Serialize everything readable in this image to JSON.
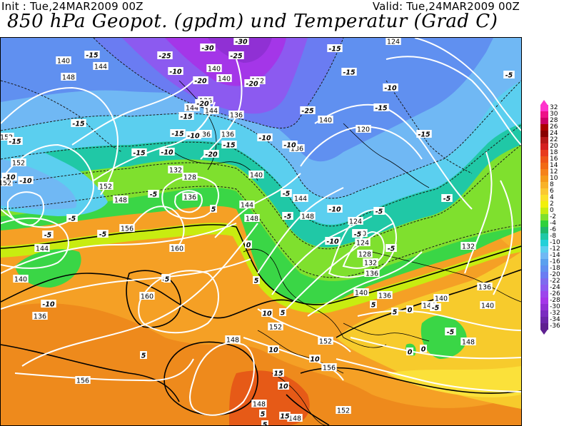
{
  "header": {
    "init": "Init : Tue,24MAR2009 00Z",
    "valid": "Valid: Tue,24MAR2009 00Z",
    "title": "850 hPa Geopot. (gpdm) und Temperatur (Grad C)"
  },
  "legend": {
    "labels": [
      "32",
      "30",
      "28",
      "26",
      "24",
      "22",
      "20",
      "18",
      "16",
      "14",
      "12",
      "10",
      "8",
      "6",
      "4",
      "2",
      "0",
      "-2",
      "-4",
      "-6",
      "-8",
      "-10",
      "-12",
      "-14",
      "-16",
      "-18",
      "-20",
      "-22",
      "-24",
      "-26",
      "-28",
      "-30",
      "-32",
      "-34",
      "-36"
    ],
    "colors": [
      "#ff33cc",
      "#ee1188",
      "#cc0066",
      "#aa0000",
      "#880000",
      "#b51818",
      "#d42020",
      "#e83a1c",
      "#ee5517",
      "#f26a14",
      "#f5821a",
      "#f59a1a",
      "#f8b228",
      "#fac832",
      "#fbe02a",
      "#f2f00a",
      "#c8ec10",
      "#7fe02e",
      "#2fd13c",
      "#1fb86c",
      "#20c8a6",
      "#22d0d8",
      "#5bcfef",
      "#70b8f4",
      "#5aa0ee",
      "#6090f0",
      "#6a7cf2",
      "#7e6aee",
      "#8c5af0",
      "#9c46ec",
      "#a436e8",
      "#9030d4",
      "#7a2cc0",
      "#6a26a8",
      "#5e2090"
    ]
  },
  "map": {
    "geopotential_labels": [
      "140",
      "148",
      "144",
      "152",
      "148",
      "144",
      "140",
      "136",
      "152",
      "152",
      "152",
      "156",
      "160",
      "160",
      "156",
      "148",
      "144",
      "148",
      "140",
      "140",
      "136",
      "132",
      "128",
      "136",
      "136",
      "144",
      "140",
      "136",
      "132",
      "140",
      "136",
      "144",
      "148",
      "152",
      "156",
      "152",
      "148",
      "148",
      "136",
      "144",
      "124",
      "120",
      "120",
      "124",
      "128",
      "132",
      "136",
      "140",
      "136",
      "140",
      "144",
      "148",
      "132",
      "136",
      "140",
      "152",
      "124"
    ],
    "temperature_labels": [
      "-15",
      "-10",
      "-15",
      "-10",
      "-15",
      "-25",
      "-30",
      "-25",
      "-20",
      "-15",
      "-30",
      "-20",
      "-15",
      "-25",
      "-15",
      "-20",
      "-10",
      "-15",
      "-10",
      "-20",
      "-15",
      "-10",
      "-5",
      "-5",
      "-10",
      "-5",
      "-10",
      "-5",
      "-10",
      "-15",
      "-5",
      "-5",
      "0",
      "-5",
      "0",
      "0",
      "-5",
      "5",
      "5",
      "5",
      "5",
      "-10",
      "-5",
      "-5",
      "-15",
      "-10",
      "-10",
      "-15",
      "-5",
      "5",
      "5",
      "10",
      "10",
      "10",
      "15",
      "10",
      "15",
      "5",
      "5",
      "5",
      "5",
      "0",
      "-5",
      "-5"
    ]
  }
}
